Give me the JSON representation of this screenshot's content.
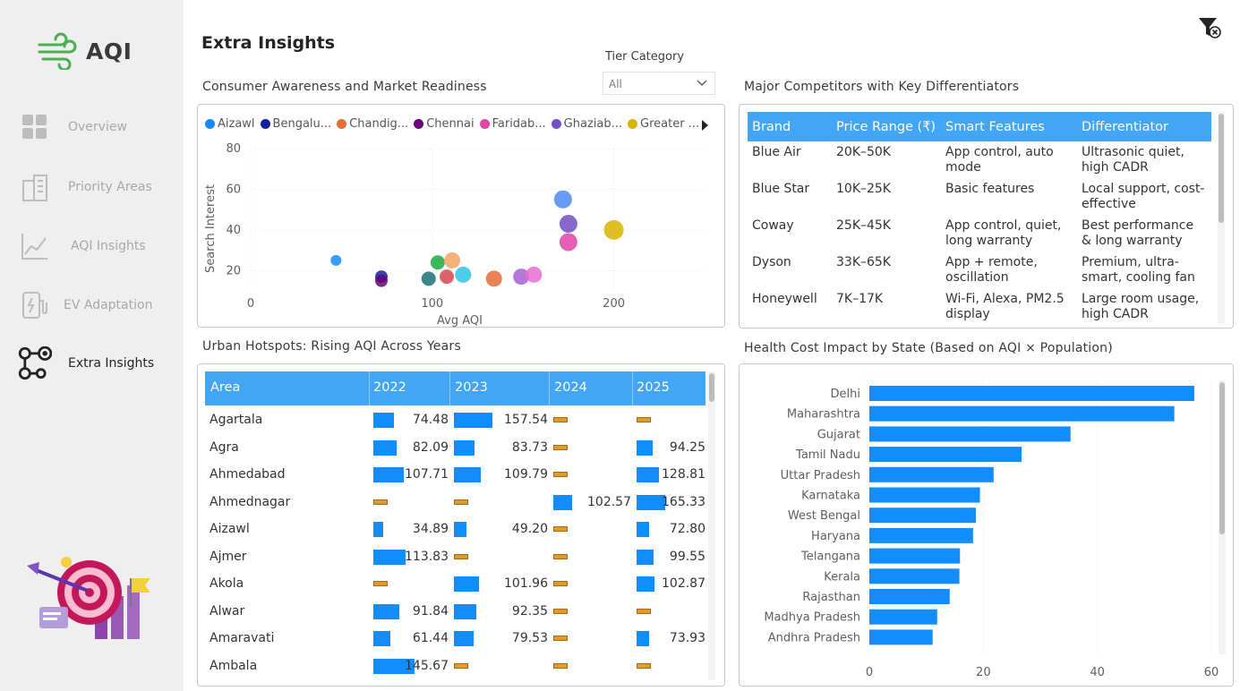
{
  "app": {
    "logo_text": "AQI",
    "page_title": "Extra Insights"
  },
  "sidebar": {
    "items": [
      {
        "label": "Overview",
        "icon": "grid-icon",
        "active": false
      },
      {
        "label": "Priority Areas",
        "icon": "buildings-icon",
        "active": false
      },
      {
        "label": "AQI Insights",
        "icon": "line-chart-icon",
        "active": false
      },
      {
        "label": "EV Adaptation",
        "icon": "ev-charger-icon",
        "active": false
      },
      {
        "label": "Extra Insights",
        "icon": "nodes-icon",
        "active": true
      }
    ]
  },
  "filter": {
    "label": "Tier Category",
    "value": "All"
  },
  "scatter": {
    "title": "Consumer Awareness and Market Readiness",
    "legend": [
      {
        "name": "Aizawl",
        "color": "#118dff"
      },
      {
        "name": "Bengalu...",
        "color": "#12239e"
      },
      {
        "name": "Chandig...",
        "color": "#e66c37"
      },
      {
        "name": "Chennai",
        "color": "#6b007b"
      },
      {
        "name": "Faridab...",
        "color": "#e044a7"
      },
      {
        "name": "Ghaziab...",
        "color": "#744ec2"
      },
      {
        "name": "Greater ...",
        "color": "#d9b300"
      }
    ]
  },
  "chart_data": [
    {
      "type": "scatter",
      "title": "Consumer Awareness and Market Readiness",
      "xlabel": "Avg AQI",
      "ylabel": "Search Interest",
      "xlim": [
        0,
        250
      ],
      "ylim": [
        10,
        80
      ],
      "x_ticks": [
        "0",
        "100",
        "200"
      ],
      "y_ticks": [
        "20",
        "40",
        "60",
        "80"
      ],
      "grid": true,
      "points": [
        {
          "x": 47,
          "y": 25,
          "r": 6,
          "color": "#118dff"
        },
        {
          "x": 72,
          "y": 17,
          "r": 7,
          "color": "#12239e"
        },
        {
          "x": 72,
          "y": 15,
          "r": 7,
          "color": "#6b007b"
        },
        {
          "x": 98,
          "y": 16,
          "r": 8,
          "color": "#197278"
        },
        {
          "x": 103,
          "y": 24,
          "r": 8,
          "color": "#1aab40"
        },
        {
          "x": 108,
          "y": 17,
          "r": 8,
          "color": "#d64550"
        },
        {
          "x": 111,
          "y": 25,
          "r": 9,
          "color": "#f4a261"
        },
        {
          "x": 117,
          "y": 18,
          "r": 9,
          "color": "#2ec4e6"
        },
        {
          "x": 134,
          "y": 16,
          "r": 9,
          "color": "#e66c37"
        },
        {
          "x": 149,
          "y": 17,
          "r": 9,
          "color": "#a75fd3"
        },
        {
          "x": 156,
          "y": 18,
          "r": 9,
          "color": "#e86ed2"
        },
        {
          "x": 172,
          "y": 55,
          "r": 10,
          "color": "#4a8cf5"
        },
        {
          "x": 175,
          "y": 43,
          "r": 10,
          "color": "#744ec2"
        },
        {
          "x": 175,
          "y": 34,
          "r": 10,
          "color": "#e044a7"
        },
        {
          "x": 200,
          "y": 40,
          "r": 11,
          "color": "#d9b300"
        }
      ]
    },
    {
      "type": "bar",
      "title": "Health Cost Impact by State (Based on AQI × Population)",
      "orientation": "horizontal",
      "categories": [
        "Delhi",
        "Maharashtra",
        "Gujarat",
        "Tamil Nadu",
        "Uttar Pradesh",
        "Karnataka",
        "West Bengal",
        "Haryana",
        "Telangana",
        "Kerala",
        "Rajasthan",
        "Madhya Pradesh",
        "Andhra Pradesh"
      ],
      "values": [
        57,
        53.5,
        35.3,
        26.7,
        21.8,
        19.4,
        18.7,
        18.2,
        15.9,
        15.8,
        14.1,
        11.9,
        11.1
      ],
      "xlim": [
        0,
        60
      ],
      "x_ticks": [
        "0",
        "20",
        "40",
        "60"
      ],
      "color": "#118dff"
    }
  ],
  "competitors": {
    "title": "Major Competitors with Key Differentiators",
    "columns": [
      "Brand",
      "Price Range (₹)",
      "Smart Features",
      "Differentiator"
    ],
    "rows": [
      [
        "Blue Air",
        "20K–50K",
        "App control, auto mode",
        "Ultrasonic quiet, high CADR"
      ],
      [
        "Blue Star",
        "10K–25K",
        "Basic features",
        "Local support, cost-effective"
      ],
      [
        "Coway",
        "25K–45K",
        "App control, quiet, long warranty",
        "Best performance & long warranty"
      ],
      [
        "Dyson",
        "33K–65K",
        "App + remote, oscillation",
        "Premium, ultra-smart, cooling fan"
      ],
      [
        "Honeywell",
        "7K–17K",
        "Wi-Fi, Alexa, PM2.5 display",
        "Large room usage, high CADR"
      ]
    ]
  },
  "hotspots": {
    "title": "Urban Hotspots: Rising AQI Across Years",
    "columns": [
      "Area",
      "2022",
      "2023",
      "2024",
      "2025"
    ],
    "rows": [
      {
        "area": "Agartala",
        "values": [
          74.48,
          157.54,
          null,
          null
        ]
      },
      {
        "area": "Agra",
        "values": [
          82.09,
          83.73,
          null,
          94.25
        ]
      },
      {
        "area": "Ahmedabad",
        "values": [
          107.71,
          109.79,
          null,
          128.81
        ]
      },
      {
        "area": "Ahmednagar",
        "values": [
          null,
          null,
          102.57,
          165.33
        ]
      },
      {
        "area": "Aizawl",
        "values": [
          34.89,
          49.2,
          null,
          72.8
        ]
      },
      {
        "area": "Ajmer",
        "values": [
          113.83,
          null,
          null,
          99.55
        ]
      },
      {
        "area": "Akola",
        "values": [
          null,
          101.96,
          null,
          102.87
        ]
      },
      {
        "area": "Alwar",
        "values": [
          91.84,
          92.35,
          null,
          null
        ]
      },
      {
        "area": "Amaravati",
        "values": [
          61.44,
          79.53,
          null,
          73.93
        ]
      },
      {
        "area": "Ambala",
        "values": [
          145.67,
          null,
          null,
          null
        ]
      }
    ],
    "labels": [
      [
        "74.48",
        "157.54",
        "",
        ""
      ],
      [
        "82.09",
        "83.73",
        "",
        "94.25"
      ],
      [
        "107.71",
        "109.79",
        "",
        "128.81"
      ],
      [
        "",
        "",
        "102.57",
        "165.33"
      ],
      [
        "34.89",
        "49.20",
        "",
        "72.80"
      ],
      [
        "113.83",
        "",
        "",
        "99.55"
      ],
      [
        "",
        "101.96",
        "",
        "102.87"
      ],
      [
        "91.84",
        "92.35",
        "",
        ""
      ],
      [
        "61.44",
        "79.53",
        "",
        "73.93"
      ],
      [
        "145.67",
        "",
        "",
        ""
      ]
    ]
  },
  "health": {
    "title": "Health Cost Impact by State (Based on AQI × Population)"
  }
}
